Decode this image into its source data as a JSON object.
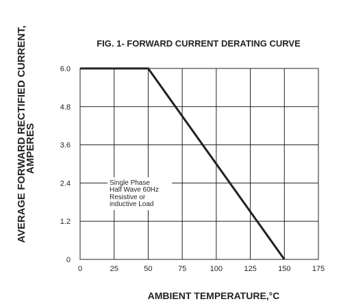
{
  "chart_data": {
    "type": "line",
    "title": "FIG. 1- FORWARD CURRENT DERATING CURVE",
    "xlabel": "AMBIENT TEMPERATURE,°C",
    "ylabel_line1": "AVERAGE FORWARD RECTIFIED CURRENT,",
    "ylabel_line2": "AMPERES",
    "xlim": [
      0,
      175
    ],
    "ylim": [
      0,
      6.0
    ],
    "x_ticks": [
      "0",
      "25",
      "50",
      "75",
      "100",
      "125",
      "150",
      "175"
    ],
    "y_ticks": [
      "0",
      "1.2",
      "2.4",
      "3.6",
      "4.8",
      "6.0"
    ],
    "grid": true,
    "series": [
      {
        "x": [
          0,
          50,
          150
        ],
        "y": [
          6.0,
          6.0,
          0
        ]
      }
    ],
    "annotation": [
      "Single Phase",
      "Half Wave 60Hz",
      "Resistive or",
      "inductive Load"
    ]
  }
}
